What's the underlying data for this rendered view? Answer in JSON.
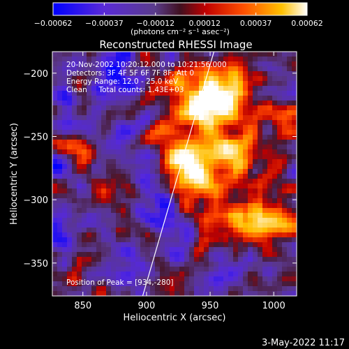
{
  "chart_data": {
    "type": "heatmap",
    "title": "Reconstructed RHESSI Image",
    "xlabel": "Heliocentric X (arcsec)",
    "ylabel": "Heliocentric Y (arcsec)",
    "xlim": [
      826,
      1018
    ],
    "ylim": [
      -376,
      -183
    ],
    "xticks": [
      850,
      900,
      950,
      1000
    ],
    "yticks": [
      -200,
      -250,
      -300,
      -350
    ],
    "xtick_labels": [
      "850",
      "900",
      "950",
      "1000"
    ],
    "ytick_labels": [
      "−200",
      "−250",
      "−300",
      "−350"
    ],
    "colorbar": {
      "range": [
        -0.00062,
        0.00062
      ],
      "ticks": [
        -0.00062,
        -0.00037,
        -0.00012,
        0.00012,
        0.00037,
        0.00062
      ],
      "tick_labels": [
        "−0.00062",
        "−0.00037",
        "−0.00012",
        "0.00012",
        "0.00037",
        "0.00062"
      ],
      "unit_label": "(photons cm⁻² s⁻¹ asec⁻²)"
    },
    "limb_line": [
      [
        897,
        -376
      ],
      [
        953,
        -183
      ]
    ],
    "peak": [
      934,
      -280
    ],
    "annotations": [
      "20-Nov-2002 10:20:12.000 to 10:21:56.000",
      "Detectors: 3F 4F 5F 6F 7F 8F, Att 0",
      "Energy Range: 12.0 - 25.0 keV",
      "Clean     Total counts: 1.43E+03"
    ],
    "peak_label": "Position of Peak = [934,-280]",
    "footer_date": "3-May-2022 11:17"
  }
}
